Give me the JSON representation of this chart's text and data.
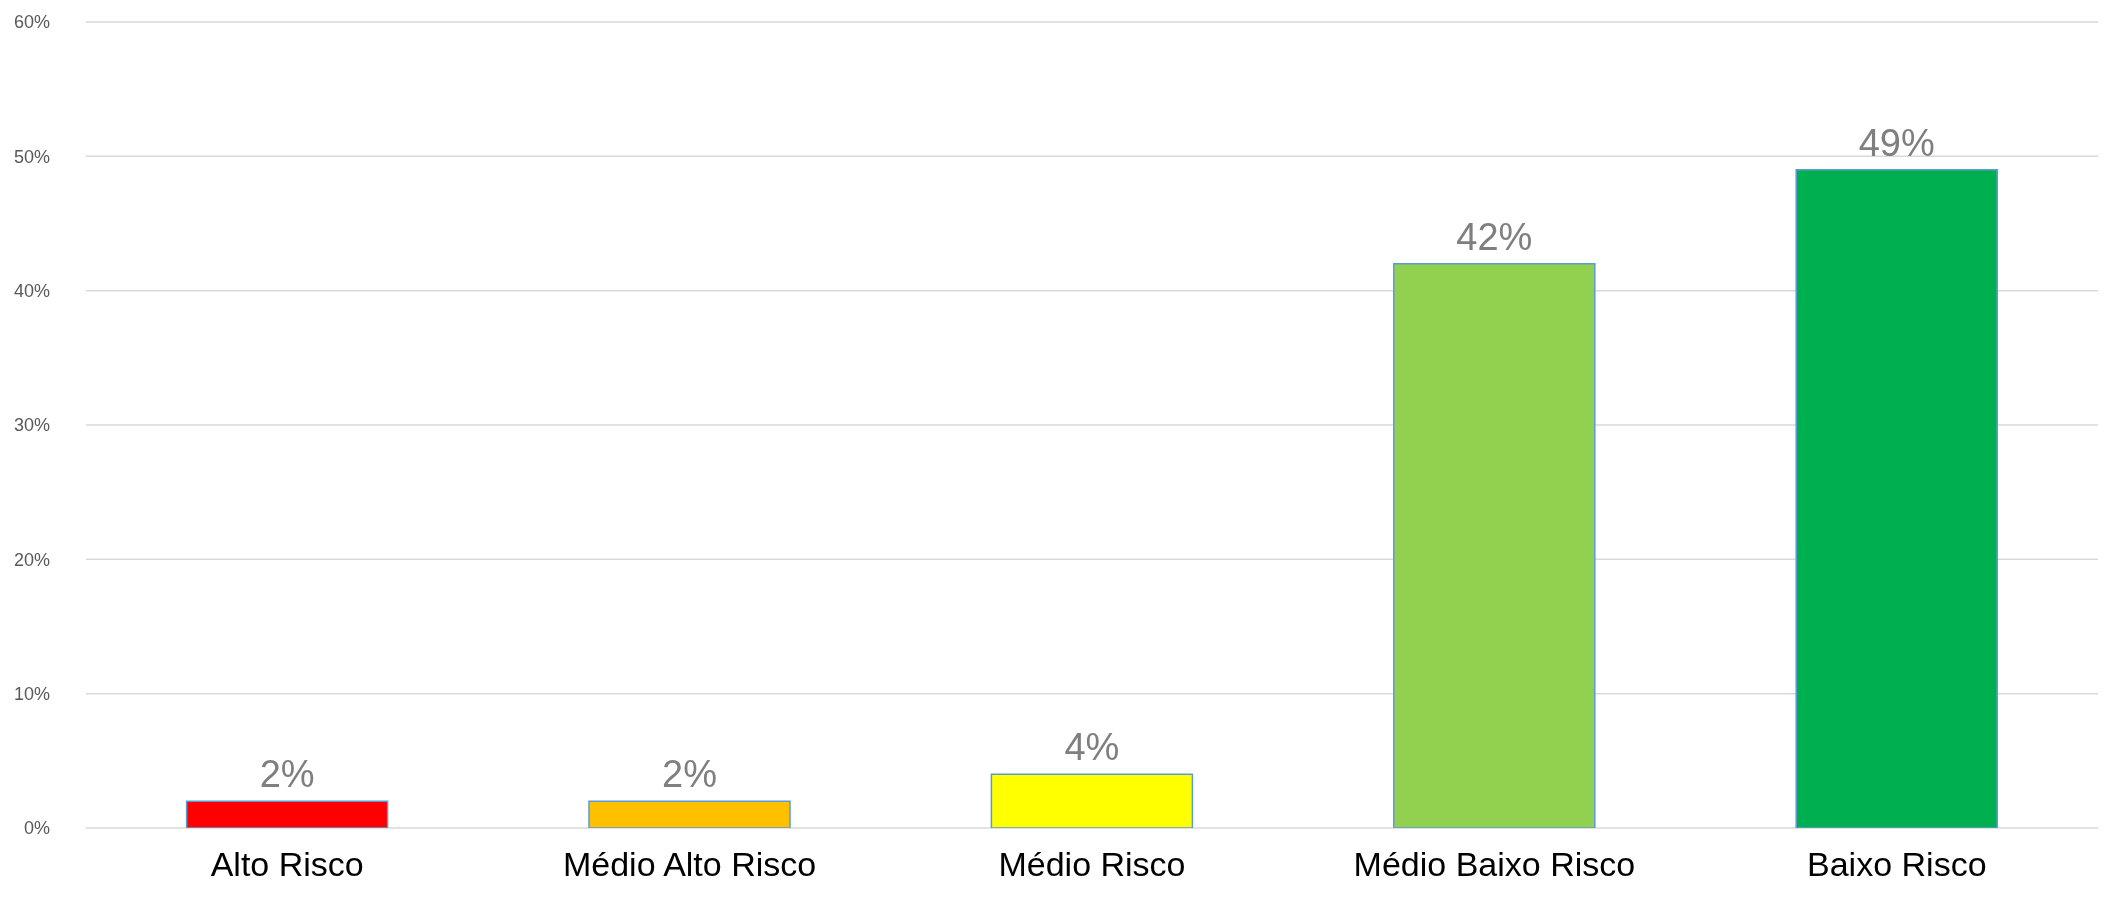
{
  "chart_data": {
    "type": "bar",
    "categories": [
      "Alto Risco",
      "Médio Alto Risco",
      "Médio Risco",
      "Médio Baixo Risco",
      "Baixo Risco"
    ],
    "values": [
      2,
      2,
      4,
      42,
      49
    ],
    "colors": [
      "#ff0000",
      "#ffc000",
      "#ffff00",
      "#92d050",
      "#00b050"
    ],
    "value_labels": [
      "2%",
      "2%",
      "4%",
      "42%",
      "49%"
    ],
    "ylim": [
      0,
      60
    ],
    "yticks": [
      {
        "value": 0,
        "label": "0%"
      },
      {
        "value": 10,
        "label": "10%"
      },
      {
        "value": 20,
        "label": "20%"
      },
      {
        "value": 30,
        "label": "30%"
      },
      {
        "value": 40,
        "label": "40%"
      },
      {
        "value": 50,
        "label": "50%"
      },
      {
        "value": 60,
        "label": "60%"
      }
    ],
    "grid": "y"
  }
}
